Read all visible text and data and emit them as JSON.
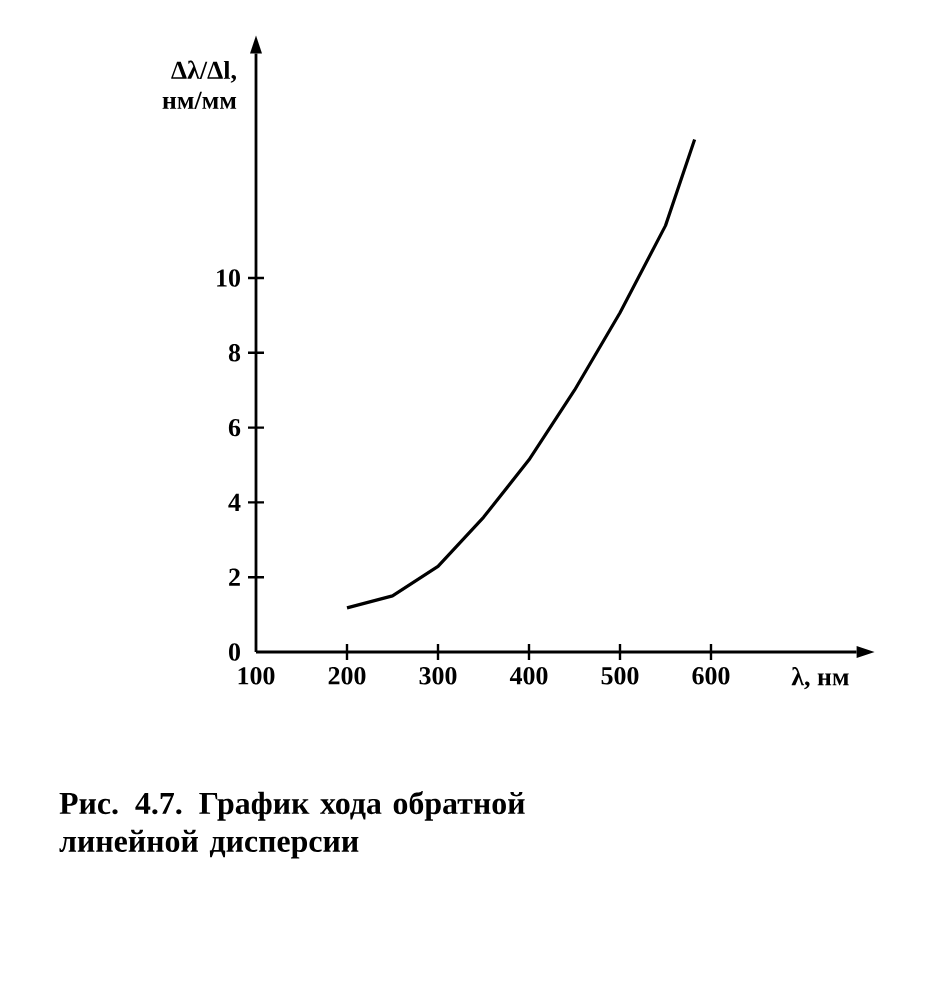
{
  "chart_data": {
    "type": "line",
    "xlabel": "λ, нм",
    "ylabel": "Δλ/Δl, нм/мм",
    "annotations": [
      "Рис. 4.7. График хода обратной линейной дисперсии"
    ],
    "x": [
      200,
      250,
      300,
      350,
      400,
      450,
      500,
      550,
      582
    ],
    "series": [
      {
        "color": "#000000",
        "values": [
          1.18,
          1.5,
          2.29,
          3.6,
          5.14,
          7.0,
          9.07,
          11.4,
          13.7
        ]
      }
    ],
    "xlim": [
      100,
      760
    ],
    "ylim": [
      0,
      16
    ],
    "xticks": [
      100,
      200,
      300,
      400,
      500,
      600
    ],
    "yticks": [
      0,
      2,
      4,
      6,
      8,
      10
    ],
    "grid": false,
    "marker": "none",
    "line_style": "solid"
  }
}
